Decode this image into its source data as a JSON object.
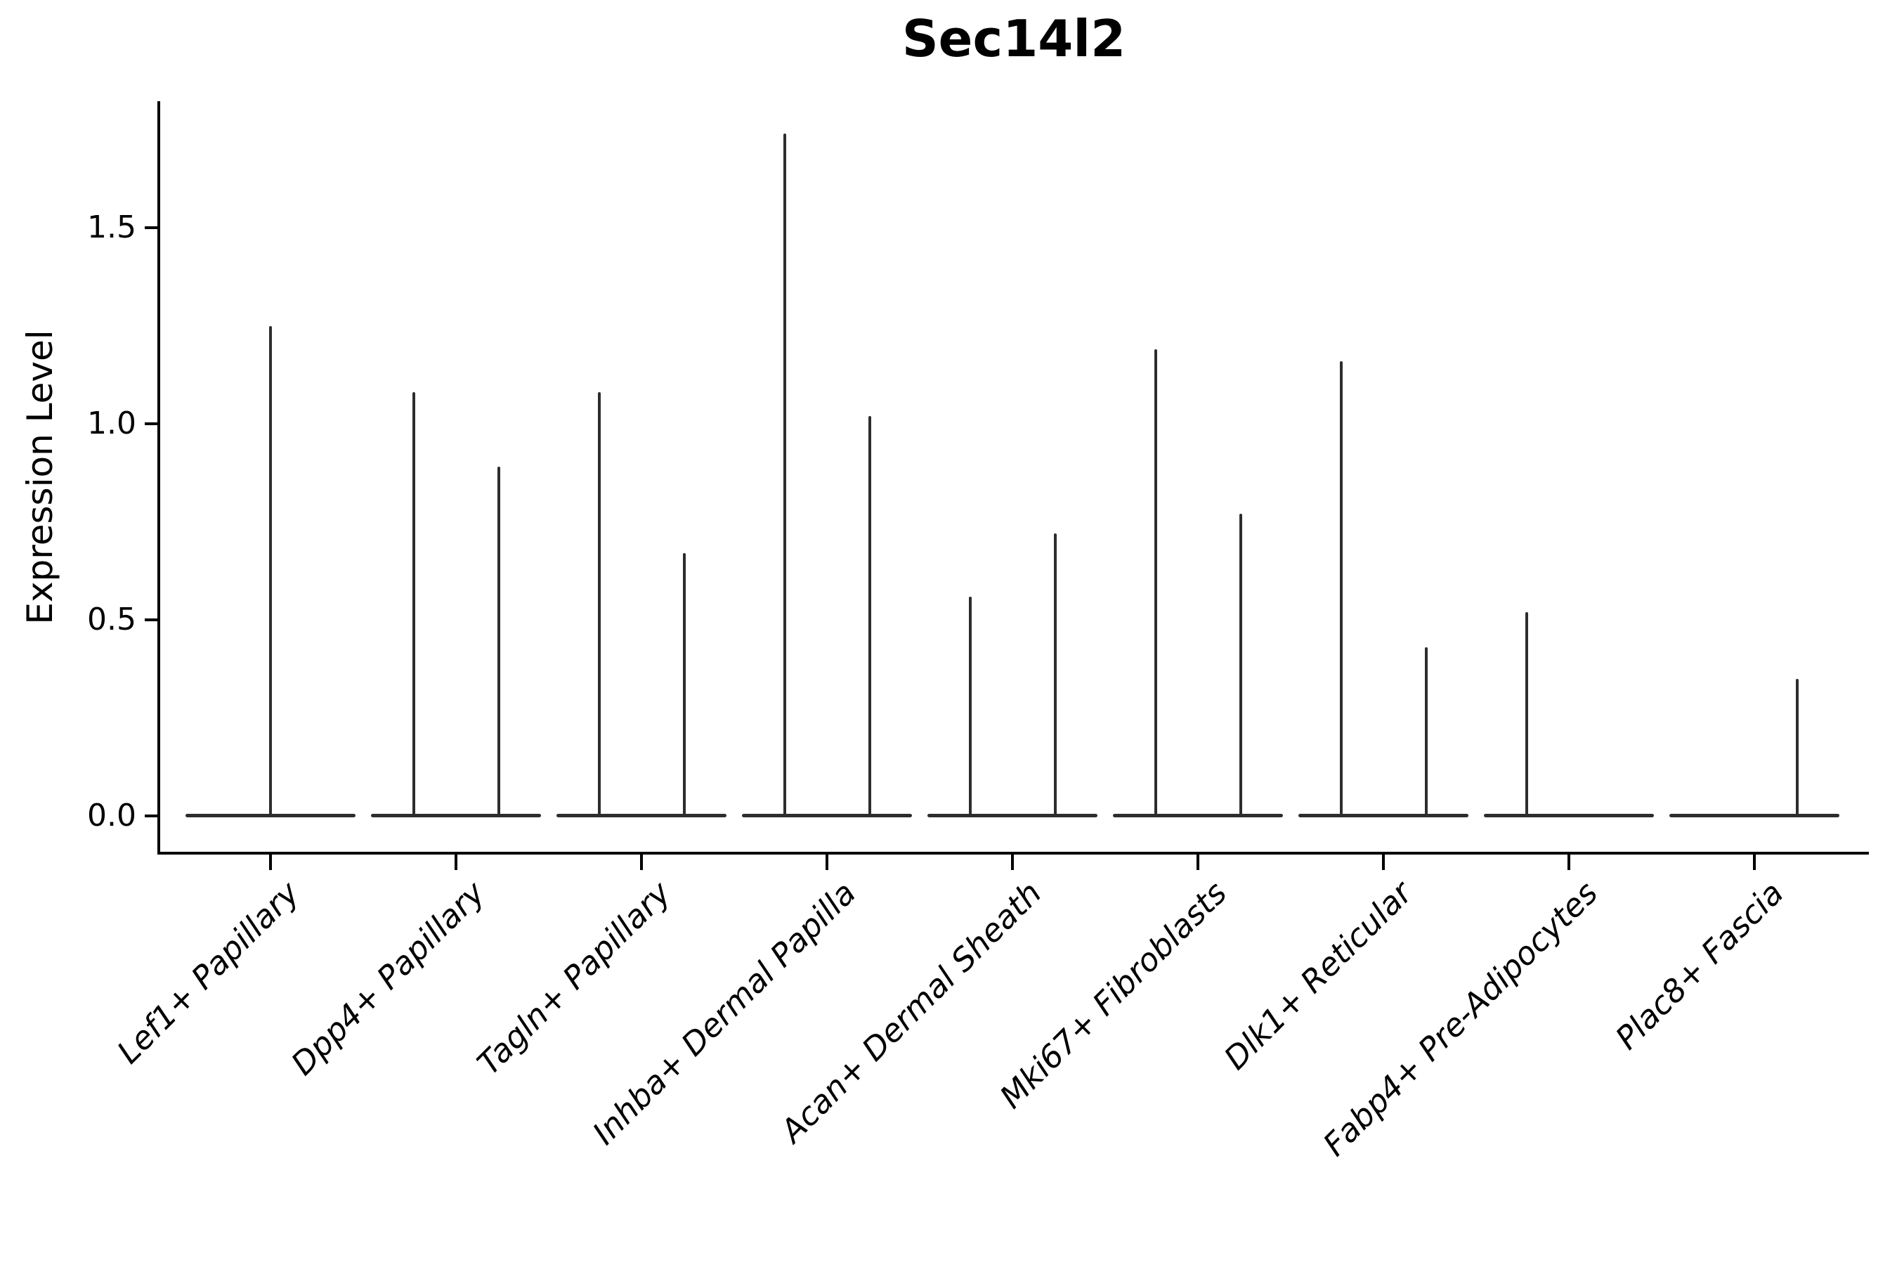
{
  "title": "Sec14l2",
  "ylabel": "Expression Level",
  "chart_data": {
    "type": "violin",
    "title": "Sec14l2",
    "xlabel": "",
    "ylabel": "Expression Level",
    "ylim": [
      -0.095,
      1.82
    ],
    "grid": false,
    "legend": "none",
    "yticks": [
      {
        "value": 0.0,
        "label": "0.0"
      },
      {
        "value": 0.5,
        "label": "0.5"
      },
      {
        "value": 1.0,
        "label": "1.0"
      },
      {
        "value": 1.5,
        "label": "1.5"
      }
    ],
    "categories": [
      "Lef1+ Papillary",
      "Dpp4+ Papillary",
      "Tagln+ Papillary",
      "Inhba+ Dermal Papilla",
      "Acan+ Dermal Sheath",
      "Mki67+ Fibroblasts",
      "Dlk1+ Reticular",
      "Fabp4+ Pre-Adipocytes",
      "Plac8+ Fascia"
    ],
    "description": "Violin plot of Sec14l2 expression; each violin collapses to a flat bar at 0 with thin vertical spikes reaching the maximum expression values",
    "baseline_value": 0.0,
    "violins": [
      {
        "category": "Lef1+ Papillary",
        "spikes": [
          {
            "slot": "center",
            "value": 1.25
          }
        ]
      },
      {
        "category": "Dpp4+ Papillary",
        "spikes": [
          {
            "slot": "left",
            "value": 1.08
          },
          {
            "slot": "right",
            "value": 0.89
          }
        ]
      },
      {
        "category": "Tagln+ Papillary",
        "spikes": [
          {
            "slot": "left",
            "value": 1.08
          },
          {
            "slot": "right",
            "value": 0.67
          }
        ]
      },
      {
        "category": "Inhba+ Dermal Papilla",
        "spikes": [
          {
            "slot": "left",
            "value": 1.74
          },
          {
            "slot": "right",
            "value": 1.02
          }
        ]
      },
      {
        "category": "Acan+ Dermal Sheath",
        "spikes": [
          {
            "slot": "left",
            "value": 0.56
          },
          {
            "slot": "right",
            "value": 0.72
          }
        ]
      },
      {
        "category": "Mki67+ Fibroblasts",
        "spikes": [
          {
            "slot": "left",
            "value": 1.19
          },
          {
            "slot": "right",
            "value": 0.77
          }
        ]
      },
      {
        "category": "Dlk1+ Reticular",
        "spikes": [
          {
            "slot": "left",
            "value": 1.16
          },
          {
            "slot": "right",
            "value": 0.43
          }
        ]
      },
      {
        "category": "Fabp4+ Pre-Adipocytes",
        "spikes": [
          {
            "slot": "left",
            "value": 0.52
          }
        ]
      },
      {
        "category": "Plac8+ Fascia",
        "spikes": [
          {
            "slot": "right",
            "value": 0.35
          }
        ]
      }
    ]
  },
  "style": {
    "line_color": "#2d2d2d",
    "spine_color": "#000000",
    "text_color": "#000000",
    "background": "#ffffff"
  }
}
